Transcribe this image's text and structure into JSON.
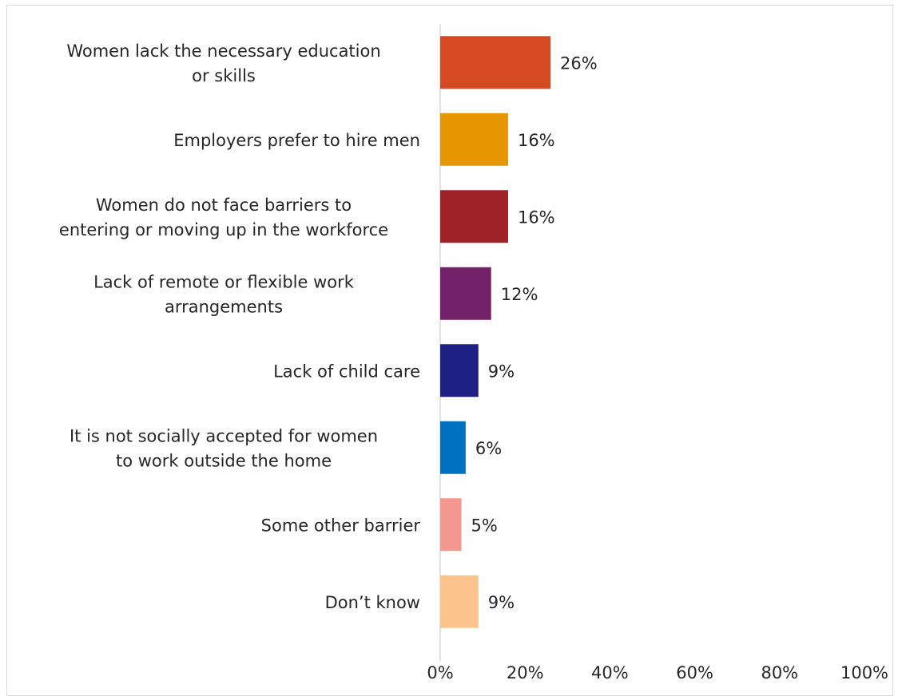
{
  "chart_data": {
    "type": "bar",
    "orientation": "horizontal",
    "categories": [
      [
        "Women lack the necessary education",
        "or skills"
      ],
      [
        "Employers prefer to hire men"
      ],
      [
        "Women do not face barriers to",
        "entering or moving up in the workforce"
      ],
      [
        "Lack of remote or flexible work",
        "arrangements"
      ],
      [
        "Lack of child care"
      ],
      [
        "It is not socially accepted for women",
        "to work outside the home"
      ],
      [
        "Some other barrier"
      ],
      [
        "Don’t know"
      ]
    ],
    "values": [
      26,
      16,
      16,
      12,
      9,
      6,
      5,
      9
    ],
    "value_labels": [
      "26%",
      "16%",
      "16%",
      "12%",
      "9%",
      "6%",
      "5%",
      "9%"
    ],
    "colors": [
      "#D64A23",
      "#E59600",
      "#A02229",
      "#73226A",
      "#1F2085",
      "#0070C0",
      "#F4978E",
      "#FDC38D"
    ],
    "xlim": [
      0,
      100
    ],
    "x_ticks": [
      0,
      20,
      40,
      60,
      80,
      100
    ],
    "x_tick_labels": [
      "0%",
      "20%",
      "40%",
      "60%",
      "80%",
      "100%"
    ],
    "grid": false,
    "legend": "none"
  }
}
